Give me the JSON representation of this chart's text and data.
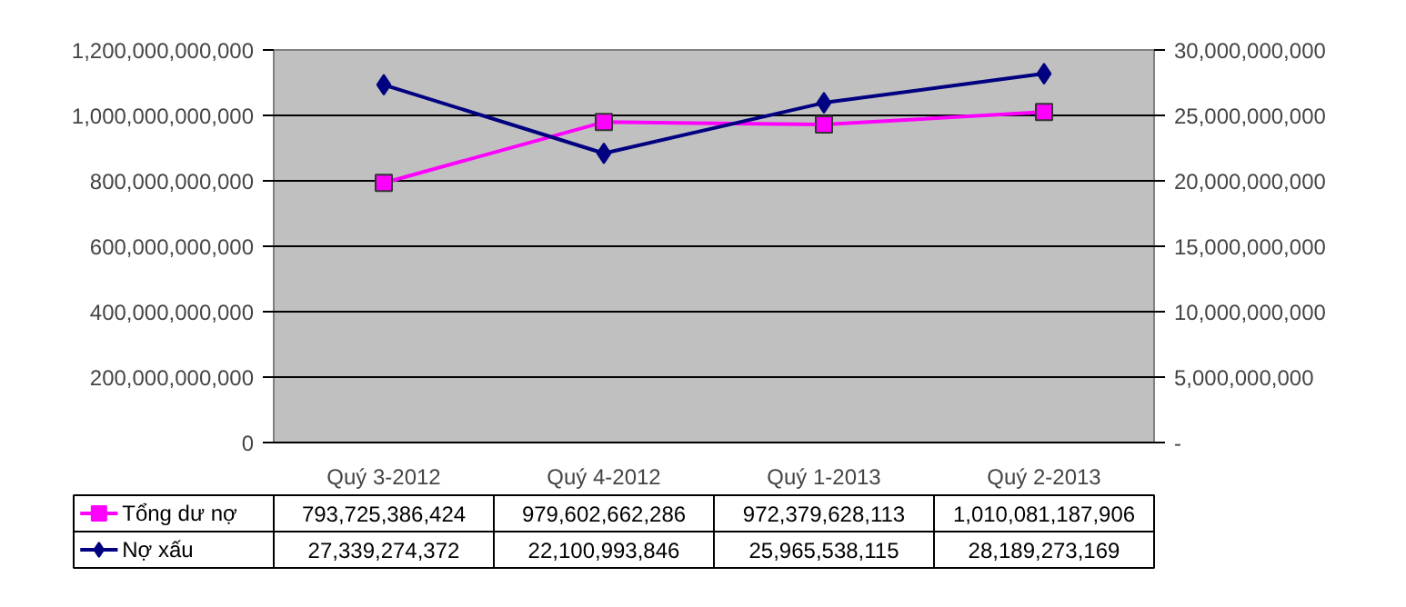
{
  "chart_data": {
    "type": "line",
    "categories": [
      "Quý 3-2012",
      "Quý 4-2012",
      "Quý 1-2013",
      "Quý 2-2013"
    ],
    "series": [
      {
        "name": "Tổng dư nợ",
        "color": "#ff00ff",
        "marker": "square",
        "values": [
          793725386424,
          979602662286,
          972379628113,
          1010081187906
        ],
        "value_labels": [
          "793,725,386,424",
          "979,602,662,286",
          "972,379,628,113",
          "1,010,081,187,906"
        ]
      },
      {
        "name": "Nợ xấu",
        "color": "#000080",
        "marker": "diamond",
        "axis": "y2",
        "values": [
          27339274372,
          22100993846,
          25965538115,
          28189273169
        ],
        "value_labels": [
          "27,339,274,372",
          "22,100,993,846",
          "25,965,538,115",
          "28,189,273,169"
        ]
      }
    ],
    "ylim": [
      0,
      1200000000000
    ],
    "yticks": [
      {
        "value": 0,
        "label": "0"
      },
      {
        "value": 200000000000,
        "label": "200,000,000,000"
      },
      {
        "value": 400000000000,
        "label": "400,000,000,000"
      },
      {
        "value": 600000000000,
        "label": "600,000,000,000"
      },
      {
        "value": 800000000000,
        "label": "800,000,000,000"
      },
      {
        "value": 1000000000000,
        "label": "1,000,000,000,000"
      },
      {
        "value": 1200000000000,
        "label": "1,200,000,000,000"
      }
    ],
    "y2lim": [
      0,
      30000000000
    ],
    "y2ticks": [
      {
        "value": 0,
        "label": "-"
      },
      {
        "value": 5000000000,
        "label": "5,000,000,000"
      },
      {
        "value": 10000000000,
        "label": "10,000,000,000"
      },
      {
        "value": 15000000000,
        "label": "15,000,000,000"
      },
      {
        "value": 20000000000,
        "label": "20,000,000,000"
      },
      {
        "value": 25000000000,
        "label": "25,000,000,000"
      },
      {
        "value": 30000000000,
        "label": "30,000,000,000"
      }
    ],
    "grid": "y",
    "legend": "bottom"
  }
}
